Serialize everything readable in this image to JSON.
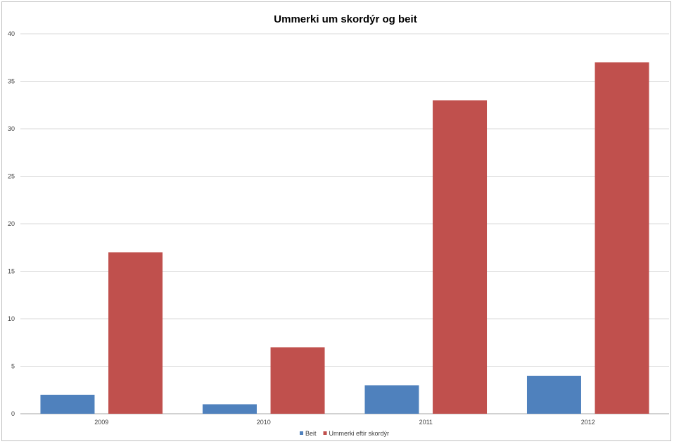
{
  "chart_data": {
    "type": "bar",
    "title": "Ummerki um skordýr og beit",
    "categories": [
      "2009",
      "2010",
      "2011",
      "2012"
    ],
    "series": [
      {
        "name": "Beit",
        "color": "#4f81bd",
        "values": [
          2,
          1,
          3,
          4
        ]
      },
      {
        "name": "Ummerki eftir skordýr",
        "color": "#c0504d",
        "values": [
          17,
          7,
          33,
          37
        ]
      }
    ],
    "ylim": [
      0,
      40
    ],
    "yticks": [
      "0",
      "5",
      "10",
      "15",
      "20",
      "25",
      "30",
      "35",
      "40"
    ],
    "grid": true,
    "legend_position": "bottom"
  }
}
